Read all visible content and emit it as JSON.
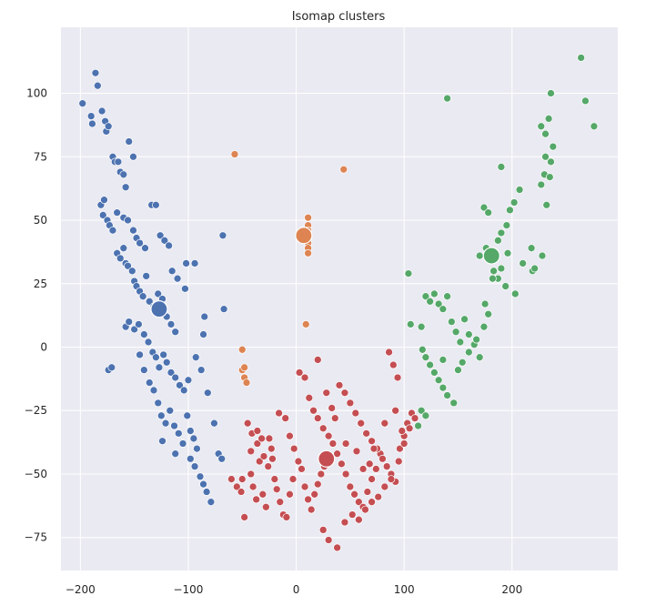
{
  "chart_data": {
    "type": "scatter",
    "title": "Isomap clusters",
    "xlabel": "",
    "ylabel": "",
    "xlim": [
      -218,
      298
    ],
    "ylim": [
      -88,
      126
    ],
    "xticks": [
      -200,
      -100,
      0,
      100,
      200
    ],
    "yticks": [
      -75,
      -50,
      -25,
      0,
      25,
      50,
      75,
      100
    ],
    "grid": true,
    "legend": "none",
    "colors": {
      "background": "#eaeaf2",
      "grid": "#ffffff"
    },
    "series": [
      {
        "color": "#4c72b0",
        "centroid": [
          -127,
          15
        ],
        "points": [
          [
            -198,
            96
          ],
          [
            -190,
            91
          ],
          [
            -189,
            88
          ],
          [
            -186,
            108
          ],
          [
            -184,
            103
          ],
          [
            -180,
            93
          ],
          [
            -177,
            89
          ],
          [
            -176,
            85
          ],
          [
            -174,
            87
          ],
          [
            -170,
            75
          ],
          [
            -168,
            73
          ],
          [
            -165,
            73
          ],
          [
            -163,
            69
          ],
          [
            -160,
            68
          ],
          [
            -158,
            63
          ],
          [
            -155,
            81
          ],
          [
            -151,
            75
          ],
          [
            -181,
            56
          ],
          [
            -178,
            58
          ],
          [
            -179,
            52
          ],
          [
            -175,
            50
          ],
          [
            -173,
            48
          ],
          [
            -170,
            46
          ],
          [
            -166,
            53
          ],
          [
            -160,
            51
          ],
          [
            -156,
            50
          ],
          [
            -151,
            46
          ],
          [
            -148,
            43
          ],
          [
            -145,
            41
          ],
          [
            -140,
            39
          ],
          [
            -134,
            56
          ],
          [
            -130,
            56
          ],
          [
            -126,
            44
          ],
          [
            -122,
            42
          ],
          [
            -118,
            40
          ],
          [
            -166,
            37
          ],
          [
            -163,
            35
          ],
          [
            -160,
            39
          ],
          [
            -158,
            33
          ],
          [
            -156,
            32
          ],
          [
            -152,
            30
          ],
          [
            -150,
            26
          ],
          [
            -148,
            24
          ],
          [
            -145,
            22
          ],
          [
            -142,
            20
          ],
          [
            -139,
            28
          ],
          [
            -136,
            18
          ],
          [
            -132,
            16
          ],
          [
            -128,
            21
          ],
          [
            -124,
            19
          ],
          [
            -120,
            12
          ],
          [
            -116,
            9
          ],
          [
            -112,
            6
          ],
          [
            -158,
            8
          ],
          [
            -155,
            10
          ],
          [
            -150,
            7
          ],
          [
            -146,
            9
          ],
          [
            -141,
            5
          ],
          [
            -137,
            2
          ],
          [
            -133,
            -2
          ],
          [
            -130,
            -4
          ],
          [
            -127,
            -8
          ],
          [
            -123,
            -3
          ],
          [
            -120,
            -6
          ],
          [
            -116,
            -10
          ],
          [
            -112,
            -12
          ],
          [
            -108,
            -15
          ],
          [
            -104,
            -17
          ],
          [
            -100,
            -13
          ],
          [
            -174,
            -9
          ],
          [
            -171,
            -8
          ],
          [
            -145,
            -3
          ],
          [
            -141,
            -9
          ],
          [
            -136,
            -14
          ],
          [
            -132,
            -17
          ],
          [
            -128,
            -22
          ],
          [
            -125,
            -27
          ],
          [
            -121,
            -30
          ],
          [
            -117,
            -25
          ],
          [
            -113,
            -31
          ],
          [
            -109,
            -34
          ],
          [
            -105,
            -38
          ],
          [
            -101,
            -27
          ],
          [
            -98,
            -33
          ],
          [
            -95,
            -36
          ],
          [
            -92,
            -40
          ],
          [
            -124,
            -37
          ],
          [
            -112,
            -42
          ],
          [
            -98,
            -44
          ],
          [
            -94,
            -47
          ],
          [
            -89,
            -51
          ],
          [
            -86,
            -54
          ],
          [
            -83,
            -57
          ],
          [
            -79,
            -61
          ],
          [
            -72,
            -42
          ],
          [
            -69,
            -44
          ],
          [
            -76,
            -30
          ],
          [
            -82,
            -18
          ],
          [
            -88,
            -9
          ],
          [
            -93,
            -4
          ],
          [
            -86,
            5
          ],
          [
            -85,
            12
          ],
          [
            -67,
            15
          ],
          [
            -102,
            33
          ],
          [
            -94,
            33
          ],
          [
            -68,
            44
          ],
          [
            -115,
            30
          ],
          [
            -110,
            27
          ],
          [
            -103,
            23
          ]
        ]
      },
      {
        "color": "#dd8452",
        "centroid": [
          7,
          44
        ],
        "points": [
          [
            -57,
            76
          ],
          [
            44,
            70
          ],
          [
            11,
            51
          ],
          [
            11,
            48
          ],
          [
            11,
            46
          ],
          [
            11,
            43
          ],
          [
            11,
            41
          ],
          [
            11,
            39
          ],
          [
            11,
            37
          ],
          [
            9,
            9
          ],
          [
            -50,
            -1
          ],
          [
            -50,
            -9
          ],
          [
            -48,
            -8
          ],
          [
            -48,
            -12
          ],
          [
            -46,
            -14
          ]
        ]
      },
      {
        "color": "#c44e52",
        "centroid": [
          28,
          -44
        ],
        "points": [
          [
            -60,
            -52
          ],
          [
            -55,
            -55
          ],
          [
            -50,
            -52
          ],
          [
            -48,
            -67
          ],
          [
            -42,
            -50
          ],
          [
            -40,
            -55
          ],
          [
            -37,
            -60
          ],
          [
            -34,
            -45
          ],
          [
            -31,
            -58
          ],
          [
            -28,
            -63
          ],
          [
            -25,
            -36
          ],
          [
            -23,
            -40
          ],
          [
            -20,
            -52
          ],
          [
            -18,
            -56
          ],
          [
            -15,
            -61
          ],
          [
            -12,
            -66
          ],
          [
            -9,
            -67
          ],
          [
            -6,
            -58
          ],
          [
            -3,
            -52
          ],
          [
            -45,
            -30
          ],
          [
            -41,
            -34
          ],
          [
            -36,
            -38
          ],
          [
            -30,
            -43
          ],
          [
            -26,
            -47
          ],
          [
            -22,
            -44
          ],
          [
            -16,
            -26
          ],
          [
            -10,
            -28
          ],
          [
            -6,
            -35
          ],
          [
            -2,
            -40
          ],
          [
            2,
            -45
          ],
          [
            5,
            -48
          ],
          [
            8,
            -55
          ],
          [
            11,
            -60
          ],
          [
            14,
            -64
          ],
          [
            17,
            -58
          ],
          [
            20,
            -54
          ],
          [
            23,
            -50
          ],
          [
            26,
            -47
          ],
          [
            3,
            -10
          ],
          [
            8,
            -12
          ],
          [
            12,
            -20
          ],
          [
            16,
            -25
          ],
          [
            20,
            -28
          ],
          [
            25,
            -32
          ],
          [
            30,
            -35
          ],
          [
            34,
            -38
          ],
          [
            38,
            -42
          ],
          [
            42,
            -46
          ],
          [
            46,
            -50
          ],
          [
            50,
            -55
          ],
          [
            54,
            -58
          ],
          [
            58,
            -61
          ],
          [
            62,
            -63
          ],
          [
            66,
            -57
          ],
          [
            70,
            -52
          ],
          [
            74,
            -48
          ],
          [
            78,
            -42
          ],
          [
            40,
            -15
          ],
          [
            45,
            -18
          ],
          [
            50,
            -22
          ],
          [
            55,
            -26
          ],
          [
            60,
            -30
          ],
          [
            65,
            -34
          ],
          [
            70,
            -37
          ],
          [
            75,
            -40
          ],
          [
            80,
            -44
          ],
          [
            84,
            -47
          ],
          [
            88,
            -50
          ],
          [
            92,
            -53
          ],
          [
            96,
            -40
          ],
          [
            100,
            -35
          ],
          [
            103,
            -30
          ],
          [
            107,
            -26
          ],
          [
            86,
            -2
          ],
          [
            90,
            -7
          ],
          [
            94,
            -12
          ],
          [
            25,
            -72
          ],
          [
            30,
            -76
          ],
          [
            38,
            -79
          ],
          [
            45,
            -69
          ],
          [
            52,
            -66
          ],
          [
            58,
            -68
          ],
          [
            64,
            -64
          ],
          [
            70,
            -61
          ],
          [
            76,
            -59
          ],
          [
            82,
            -55
          ],
          [
            88,
            -52
          ],
          [
            95,
            -45
          ],
          [
            100,
            -38
          ],
          [
            105,
            -32
          ],
          [
            110,
            -28
          ],
          [
            -32,
            -36
          ],
          [
            -36,
            -33
          ],
          [
            -42,
            -41
          ],
          [
            -51,
            -57
          ],
          [
            20,
            -5
          ],
          [
            28,
            -18
          ],
          [
            33,
            -24
          ],
          [
            36,
            -28
          ],
          [
            46,
            -38
          ],
          [
            56,
            -41
          ],
          [
            62,
            -48
          ],
          [
            68,
            -46
          ],
          [
            72,
            -40
          ],
          [
            82,
            -30
          ],
          [
            92,
            -25
          ],
          [
            98,
            -33
          ]
        ]
      },
      {
        "color": "#55a868",
        "centroid": [
          181,
          36
        ],
        "points": [
          [
            264,
            114
          ],
          [
            236,
            100
          ],
          [
            268,
            97
          ],
          [
            276,
            87
          ],
          [
            140,
            98
          ],
          [
            234,
            90
          ],
          [
            227,
            87
          ],
          [
            231,
            84
          ],
          [
            238,
            79
          ],
          [
            231,
            75
          ],
          [
            236,
            73
          ],
          [
            230,
            68
          ],
          [
            235,
            67
          ],
          [
            227,
            64
          ],
          [
            190,
            71
          ],
          [
            207,
            62
          ],
          [
            202,
            57
          ],
          [
            198,
            54
          ],
          [
            174,
            55
          ],
          [
            178,
            53
          ],
          [
            195,
            48
          ],
          [
            190,
            45
          ],
          [
            187,
            42
          ],
          [
            176,
            39
          ],
          [
            170,
            36
          ],
          [
            183,
            30
          ],
          [
            187,
            27
          ],
          [
            194,
            24
          ],
          [
            203,
            21
          ],
          [
            210,
            33
          ],
          [
            218,
            39
          ],
          [
            228,
            36
          ],
          [
            232,
            56
          ],
          [
            219,
            30
          ],
          [
            221,
            31
          ],
          [
            104,
            29
          ],
          [
            106,
            9
          ],
          [
            116,
            8
          ],
          [
            120,
            20
          ],
          [
            124,
            18
          ],
          [
            128,
            21
          ],
          [
            132,
            17
          ],
          [
            136,
            15
          ],
          [
            140,
            20
          ],
          [
            144,
            10
          ],
          [
            148,
            6
          ],
          [
            152,
            2
          ],
          [
            156,
            11
          ],
          [
            160,
            5
          ],
          [
            165,
            1
          ],
          [
            170,
            -4
          ],
          [
            174,
            8
          ],
          [
            178,
            13
          ],
          [
            117,
            -1
          ],
          [
            120,
            -4
          ],
          [
            124,
            -7
          ],
          [
            128,
            -10
          ],
          [
            132,
            -13
          ],
          [
            136,
            -16
          ],
          [
            140,
            -19
          ],
          [
            146,
            -22
          ],
          [
            150,
            -9
          ],
          [
            154,
            -6
          ],
          [
            136,
            -5
          ],
          [
            116,
            -25
          ],
          [
            120,
            -27
          ],
          [
            113,
            -31
          ],
          [
            160,
            -2
          ],
          [
            167,
            3
          ],
          [
            175,
            17
          ],
          [
            182,
            27
          ],
          [
            190,
            31
          ],
          [
            196,
            37
          ]
        ]
      }
    ]
  }
}
